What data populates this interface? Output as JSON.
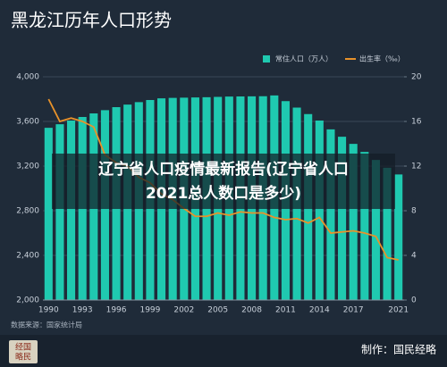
{
  "chart_data": {
    "type": "bar",
    "title": "黑龙江历年人口形势",
    "source": "数据来源：国家统计局",
    "credit": "制作：国民经略",
    "logo": [
      "经国",
      "略民"
    ],
    "overlay": [
      "辽宁省人口疫情最新报告(辽宁省人口",
      "2021总人数口是多少)"
    ],
    "categories": [
      "1990",
      null,
      null,
      "1993",
      null,
      null,
      "1996",
      null,
      null,
      "1999",
      null,
      null,
      "2002",
      null,
      null,
      "2005",
      null,
      null,
      "2008",
      null,
      null,
      "2011",
      null,
      null,
      "2014",
      null,
      null,
      "2017",
      null,
      null,
      null,
      "2021"
    ],
    "series": [
      {
        "name": "常住人口（万人）",
        "type": "bar",
        "color": "#1fc9b0",
        "values": [
          3543,
          3575,
          3608,
          3640,
          3672,
          3701,
          3728,
          3751,
          3773,
          3792,
          3807,
          3811,
          3813,
          3815,
          3817,
          3820,
          3823,
          3824,
          3825,
          3826,
          3833,
          3782,
          3724,
          3666,
          3608,
          3529,
          3463,
          3399,
          3327,
          3255,
          3185,
          3125
        ]
      },
      {
        "name": "出生率（‰）",
        "type": "line",
        "axis": "y2",
        "color": "#e8922a",
        "values": [
          18,
          16,
          16.3,
          16,
          15.5,
          13,
          12.3,
          12,
          11,
          10.5,
          9.5,
          9,
          8.2,
          7.5,
          7.5,
          7.8,
          7.6,
          7.9,
          7.8,
          7.8,
          7.4,
          7.2,
          7.3,
          6.9,
          7.4,
          6,
          6.1,
          6.2,
          6,
          5.7,
          3.8,
          3.6
        ]
      }
    ],
    "ylim": [
      2000,
      4000
    ],
    "yticks": [
      {
        "value": 2000,
        "label": "2,000"
      },
      {
        "value": 2400,
        "label": "2,400"
      },
      {
        "value": 2800,
        "label": "2,800"
      },
      {
        "value": 3200,
        "label": "3,200"
      },
      {
        "value": 3600,
        "label": "3,600"
      },
      {
        "value": 4000,
        "label": "4,000"
      }
    ],
    "y2lim": [
      0,
      20
    ],
    "y2ticks": [
      0,
      4,
      8,
      12,
      16,
      20
    ],
    "grid": true,
    "legend": "top-right"
  }
}
